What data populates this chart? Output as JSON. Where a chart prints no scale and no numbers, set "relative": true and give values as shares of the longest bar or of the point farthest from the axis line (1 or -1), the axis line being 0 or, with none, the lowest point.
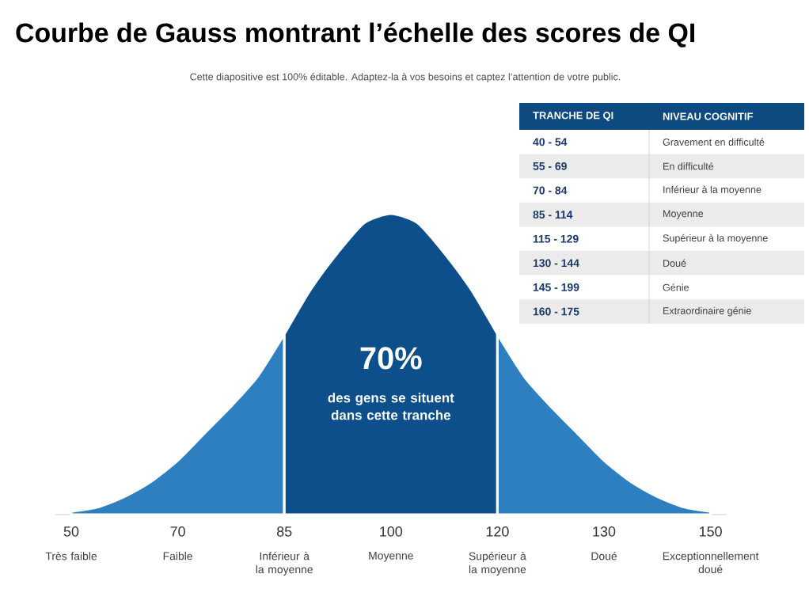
{
  "chart_data": [
    {
      "type": "area",
      "title": "Courbe de Gauss montrant l’échelle des scores de QI",
      "subtitle": "Cette diapositive est 100% éditable. Adaptez-la à vos besoins et captez l’attention de votre public.",
      "relative": true,
      "categories": [
        "50",
        null,
        null,
        null,
        "70",
        null,
        null,
        null,
        "85",
        null,
        null,
        null,
        "100",
        null,
        null,
        null,
        "120",
        null,
        null,
        null,
        "130",
        null,
        null,
        null,
        "150"
      ],
      "series": [
        {
          "color": "#2e7fbf",
          "values": [
            0.01,
            0.025,
            0.06,
            0.11,
            0.18,
            0.27,
            0.36,
            0.46,
            0.6,
            null,
            null,
            null,
            null,
            null,
            null,
            null,
            null,
            null,
            null,
            null,
            null,
            null,
            null,
            null,
            null
          ]
        },
        {
          "color": "#0d4f8b",
          "values": [
            null,
            null,
            null,
            null,
            null,
            null,
            null,
            null,
            0.6,
            0.75,
            0.87,
            0.97,
            1,
            0.97,
            0.87,
            0.75,
            0.6,
            null,
            null,
            null,
            null,
            null,
            null,
            null,
            null
          ]
        },
        {
          "color": "#2e7fbf",
          "values": [
            null,
            null,
            null,
            null,
            null,
            null,
            null,
            null,
            null,
            null,
            null,
            null,
            null,
            null,
            null,
            null,
            0.6,
            0.46,
            0.36,
            0.27,
            0.18,
            0.11,
            0.06,
            0.025,
            0.01
          ]
        }
      ],
      "annotations": [
        "70%",
        "des gens se situent dans cette tranche",
        "Très faible",
        "Faible",
        "Inférieur à la moyenne",
        "Moyenne",
        "Supérieur à la moyenne",
        "Doué",
        "Exceptionnellement doué"
      ]
    },
    {
      "type": "other",
      "annotations": [
        "TRANCHE DE QI",
        "NIVEAU COGNITIF",
        "40 - 54",
        "Gravement en difficulté",
        "55 - 69",
        "En difficulté",
        "70 - 84",
        "Inférieur à la moyenne",
        "85 - 114",
        "Moyenne",
        "115 - 129",
        "Supérieur à la moyenne",
        "130 - 144",
        "Doué",
        "145 - 199",
        "Génie",
        "160 - 175",
        "Extraordinaire génie"
      ]
    }
  ]
}
